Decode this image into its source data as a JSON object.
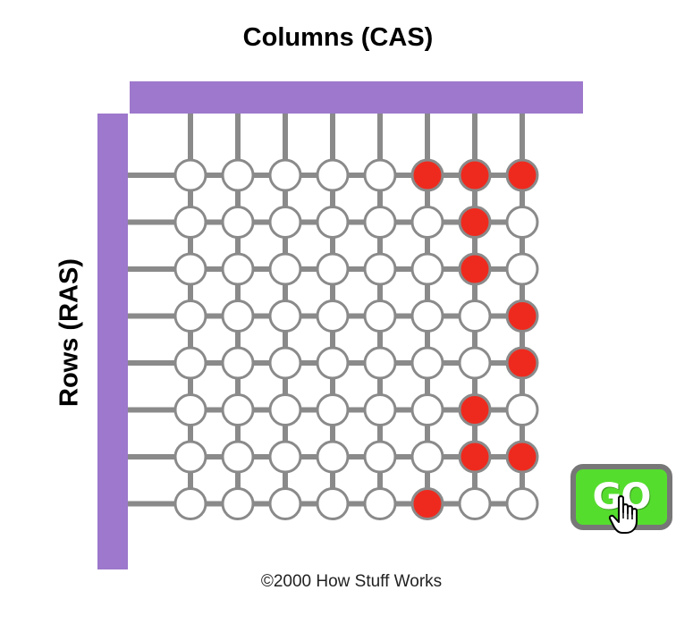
{
  "title": "Columns (CAS)",
  "row_label": "Rows (RAS)",
  "go_button": {
    "label": "GO"
  },
  "copyright": "©2000 How Stuff Works",
  "colors": {
    "bar": "#9d78cc",
    "wire": "#8a8a8a",
    "cell_empty": "#ffffff",
    "cell_charged": "#ee2a1e",
    "go_fill": "#55dd2e",
    "go_border": "#777777"
  },
  "grid": {
    "rows": 8,
    "columns": 8,
    "cells": [
      [
        0,
        0,
        0,
        0,
        0,
        1,
        1,
        1
      ],
      [
        0,
        0,
        0,
        0,
        0,
        0,
        1,
        0
      ],
      [
        0,
        0,
        0,
        0,
        0,
        0,
        1,
        0
      ],
      [
        0,
        0,
        0,
        0,
        0,
        0,
        0,
        1
      ],
      [
        0,
        0,
        0,
        0,
        0,
        0,
        0,
        1
      ],
      [
        0,
        0,
        0,
        0,
        0,
        0,
        1,
        0
      ],
      [
        0,
        0,
        0,
        0,
        0,
        0,
        1,
        1
      ],
      [
        0,
        0,
        0,
        0,
        0,
        1,
        0,
        0
      ]
    ]
  }
}
